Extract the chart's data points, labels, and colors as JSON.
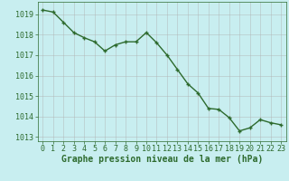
{
  "x": [
    0,
    1,
    2,
    3,
    4,
    5,
    6,
    7,
    8,
    9,
    10,
    11,
    12,
    13,
    14,
    15,
    16,
    17,
    18,
    19,
    20,
    21,
    22,
    23
  ],
  "y": [
    1019.2,
    1019.1,
    1018.6,
    1018.1,
    1017.85,
    1017.65,
    1017.2,
    1017.5,
    1017.65,
    1017.65,
    1018.1,
    1017.6,
    1017.0,
    1016.3,
    1015.6,
    1015.15,
    1014.4,
    1014.35,
    1013.95,
    1013.3,
    1013.45,
    1013.85,
    1013.7,
    1013.6
  ],
  "line_color": "#2d6a2d",
  "marker": "+",
  "bg_color": "#c8eef0",
  "grid_color": "#b0b0b0",
  "ylim": [
    1012.8,
    1019.6
  ],
  "xlim": [
    -0.5,
    23.5
  ],
  "yticks": [
    1013,
    1014,
    1015,
    1016,
    1017,
    1018,
    1019
  ],
  "xticks": [
    0,
    1,
    2,
    3,
    4,
    5,
    6,
    7,
    8,
    9,
    10,
    11,
    12,
    13,
    14,
    15,
    16,
    17,
    18,
    19,
    20,
    21,
    22,
    23
  ],
  "xlabel": "Graphe pression niveau de la mer (hPa)",
  "tick_color": "#2d6a2d",
  "label_color": "#2d6a2d",
  "xlabel_fontsize": 7.0,
  "tick_fontsize": 6.0,
  "linewidth": 1.0,
  "markersize": 3.5,
  "grid_alpha": 0.6,
  "grid_linewidth": 0.5
}
